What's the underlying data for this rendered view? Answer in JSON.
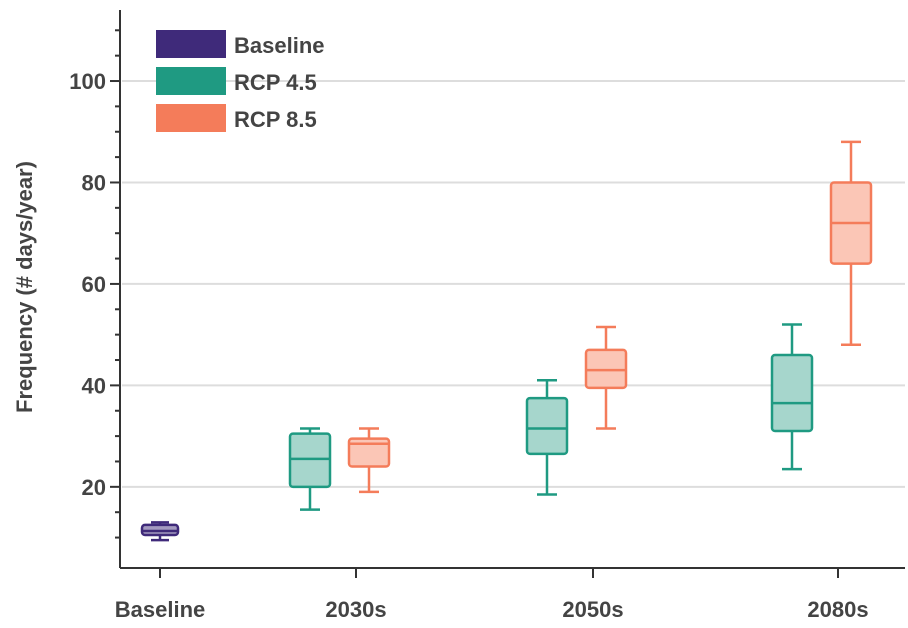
{
  "chart_data": {
    "type": "box",
    "title": "",
    "xlabel": "",
    "ylabel": "Frequency (# days/year)",
    "ylim": [
      4,
      114
    ],
    "yticks": [
      20,
      40,
      60,
      80,
      100
    ],
    "categories": [
      "Baseline",
      "2030s",
      "2050s",
      "2080s"
    ],
    "grid": "horizontal",
    "legend_position": "top-left",
    "series": [
      {
        "name": "Baseline",
        "color": "#3f2a7a",
        "fill": "#a49ac0",
        "boxes": [
          {
            "category": "Baseline",
            "min": 9.5,
            "q1": 10.5,
            "median": 11.3,
            "q3": 12.5,
            "max": 13.0
          }
        ]
      },
      {
        "name": "RCP 4.5",
        "color": "#1f9a82",
        "fill": "#a6d6cc",
        "boxes": [
          {
            "category": "2030s",
            "min": 15.5,
            "q1": 20.0,
            "median": 25.5,
            "q3": 30.5,
            "max": 31.5
          },
          {
            "category": "2050s",
            "min": 18.5,
            "q1": 26.5,
            "median": 31.5,
            "q3": 37.5,
            "max": 41.0
          },
          {
            "category": "2080s",
            "min": 23.5,
            "q1": 31.0,
            "median": 36.5,
            "q3": 46.0,
            "max": 52.0
          }
        ]
      },
      {
        "name": "RCP 8.5",
        "color": "#f47c5a",
        "fill": "#fbc6b6",
        "boxes": [
          {
            "category": "2030s",
            "min": 19.0,
            "q1": 24.0,
            "median": 28.5,
            "q3": 29.5,
            "max": 31.5
          },
          {
            "category": "2050s",
            "min": 31.5,
            "q1": 39.5,
            "median": 43.0,
            "q3": 47.0,
            "max": 51.5
          },
          {
            "category": "2080s",
            "min": 48.0,
            "q1": 64.0,
            "median": 72.0,
            "q3": 80.0,
            "max": 88.0
          }
        ]
      }
    ]
  }
}
